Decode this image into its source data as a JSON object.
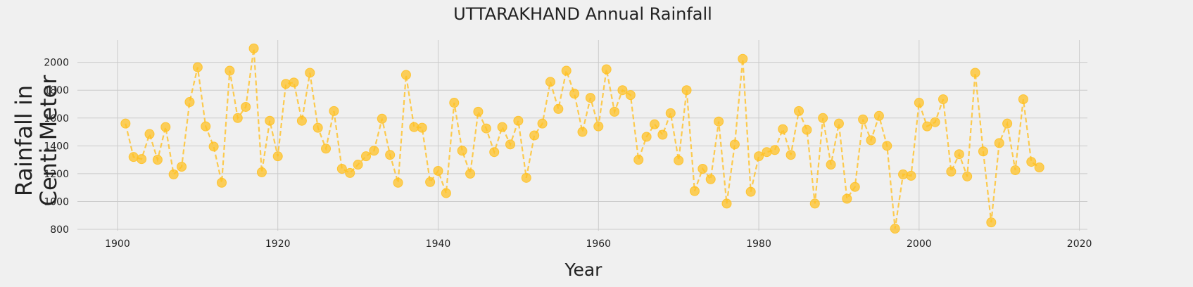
{
  "chart_data": {
    "type": "line",
    "title": "UTTARAKHAND Annual Rainfall",
    "xlabel": "Year",
    "ylabel_lines": [
      "Rainfall in",
      "Centi Meter"
    ],
    "xlim": [
      1895,
      2021
    ],
    "ylim": [
      790,
      2160
    ],
    "xticks": [
      1900,
      1920,
      1940,
      1960,
      1980,
      2000,
      2020
    ],
    "yticks": [
      800,
      1000,
      1200,
      1400,
      1600,
      1800,
      2000
    ],
    "grid": true,
    "colors": {
      "background": "#f0f0f0",
      "grid": "#cbcbcb",
      "series": "#ffc125",
      "text": "#222222"
    },
    "series": [
      {
        "style": "dashed line with circle markers",
        "x": [
          1901,
          1902,
          1903,
          1904,
          1905,
          1906,
          1907,
          1908,
          1909,
          1910,
          1911,
          1912,
          1913,
          1914,
          1915,
          1916,
          1917,
          1918,
          1919,
          1920,
          1921,
          1922,
          1923,
          1924,
          1925,
          1926,
          1927,
          1928,
          1929,
          1930,
          1931,
          1932,
          1933,
          1934,
          1935,
          1936,
          1937,
          1938,
          1939,
          1940,
          1941,
          1942,
          1943,
          1944,
          1945,
          1946,
          1947,
          1948,
          1949,
          1950,
          1951,
          1952,
          1953,
          1954,
          1955,
          1956,
          1957,
          1958,
          1959,
          1960,
          1961,
          1962,
          1963,
          1964,
          1965,
          1966,
          1967,
          1968,
          1969,
          1970,
          1971,
          1972,
          1973,
          1974,
          1975,
          1976,
          1977,
          1978,
          1979,
          1980,
          1981,
          1982,
          1983,
          1984,
          1985,
          1986,
          1987,
          1988,
          1989,
          1990,
          1991,
          1992,
          1993,
          1994,
          1995,
          1996,
          1997,
          1998,
          1999,
          2000,
          2001,
          2002,
          2003,
          2004,
          2005,
          2006,
          2007,
          2008,
          2009,
          2010,
          2011,
          2012,
          2013,
          2014,
          2015
        ],
        "y": [
          1560,
          1320,
          1305,
          1485,
          1300,
          1535,
          1195,
          1250,
          1715,
          1965,
          1540,
          1395,
          1135,
          1940,
          1600,
          1680,
          2100,
          1210,
          1580,
          1325,
          1845,
          1855,
          1580,
          1925,
          1530,
          1380,
          1650,
          1235,
          1205,
          1265,
          1325,
          1365,
          1595,
          1335,
          1135,
          1910,
          1535,
          1530,
          1140,
          1220,
          1060,
          1710,
          1365,
          1200,
          1645,
          1525,
          1355,
          1535,
          1410,
          1580,
          1170,
          1475,
          1560,
          1860,
          1665,
          1940,
          1775,
          1500,
          1745,
          1540,
          1950,
          1645,
          1800,
          1765,
          1300,
          1465,
          1555,
          1480,
          1635,
          1295,
          1800,
          1075,
          1235,
          1160,
          1575,
          985,
          1410,
          2025,
          1070,
          1325,
          1355,
          1370,
          1520,
          1335,
          1650,
          1515,
          985,
          1600,
          1265,
          1560,
          1020,
          1105,
          1590,
          1440,
          1615,
          1400,
          805,
          1195,
          1185,
          1710,
          1540,
          1570,
          1735,
          1215,
          1340,
          1180,
          1925,
          1360,
          850,
          1420,
          1560,
          1225,
          1735,
          1285,
          1245
        ]
      }
    ]
  }
}
